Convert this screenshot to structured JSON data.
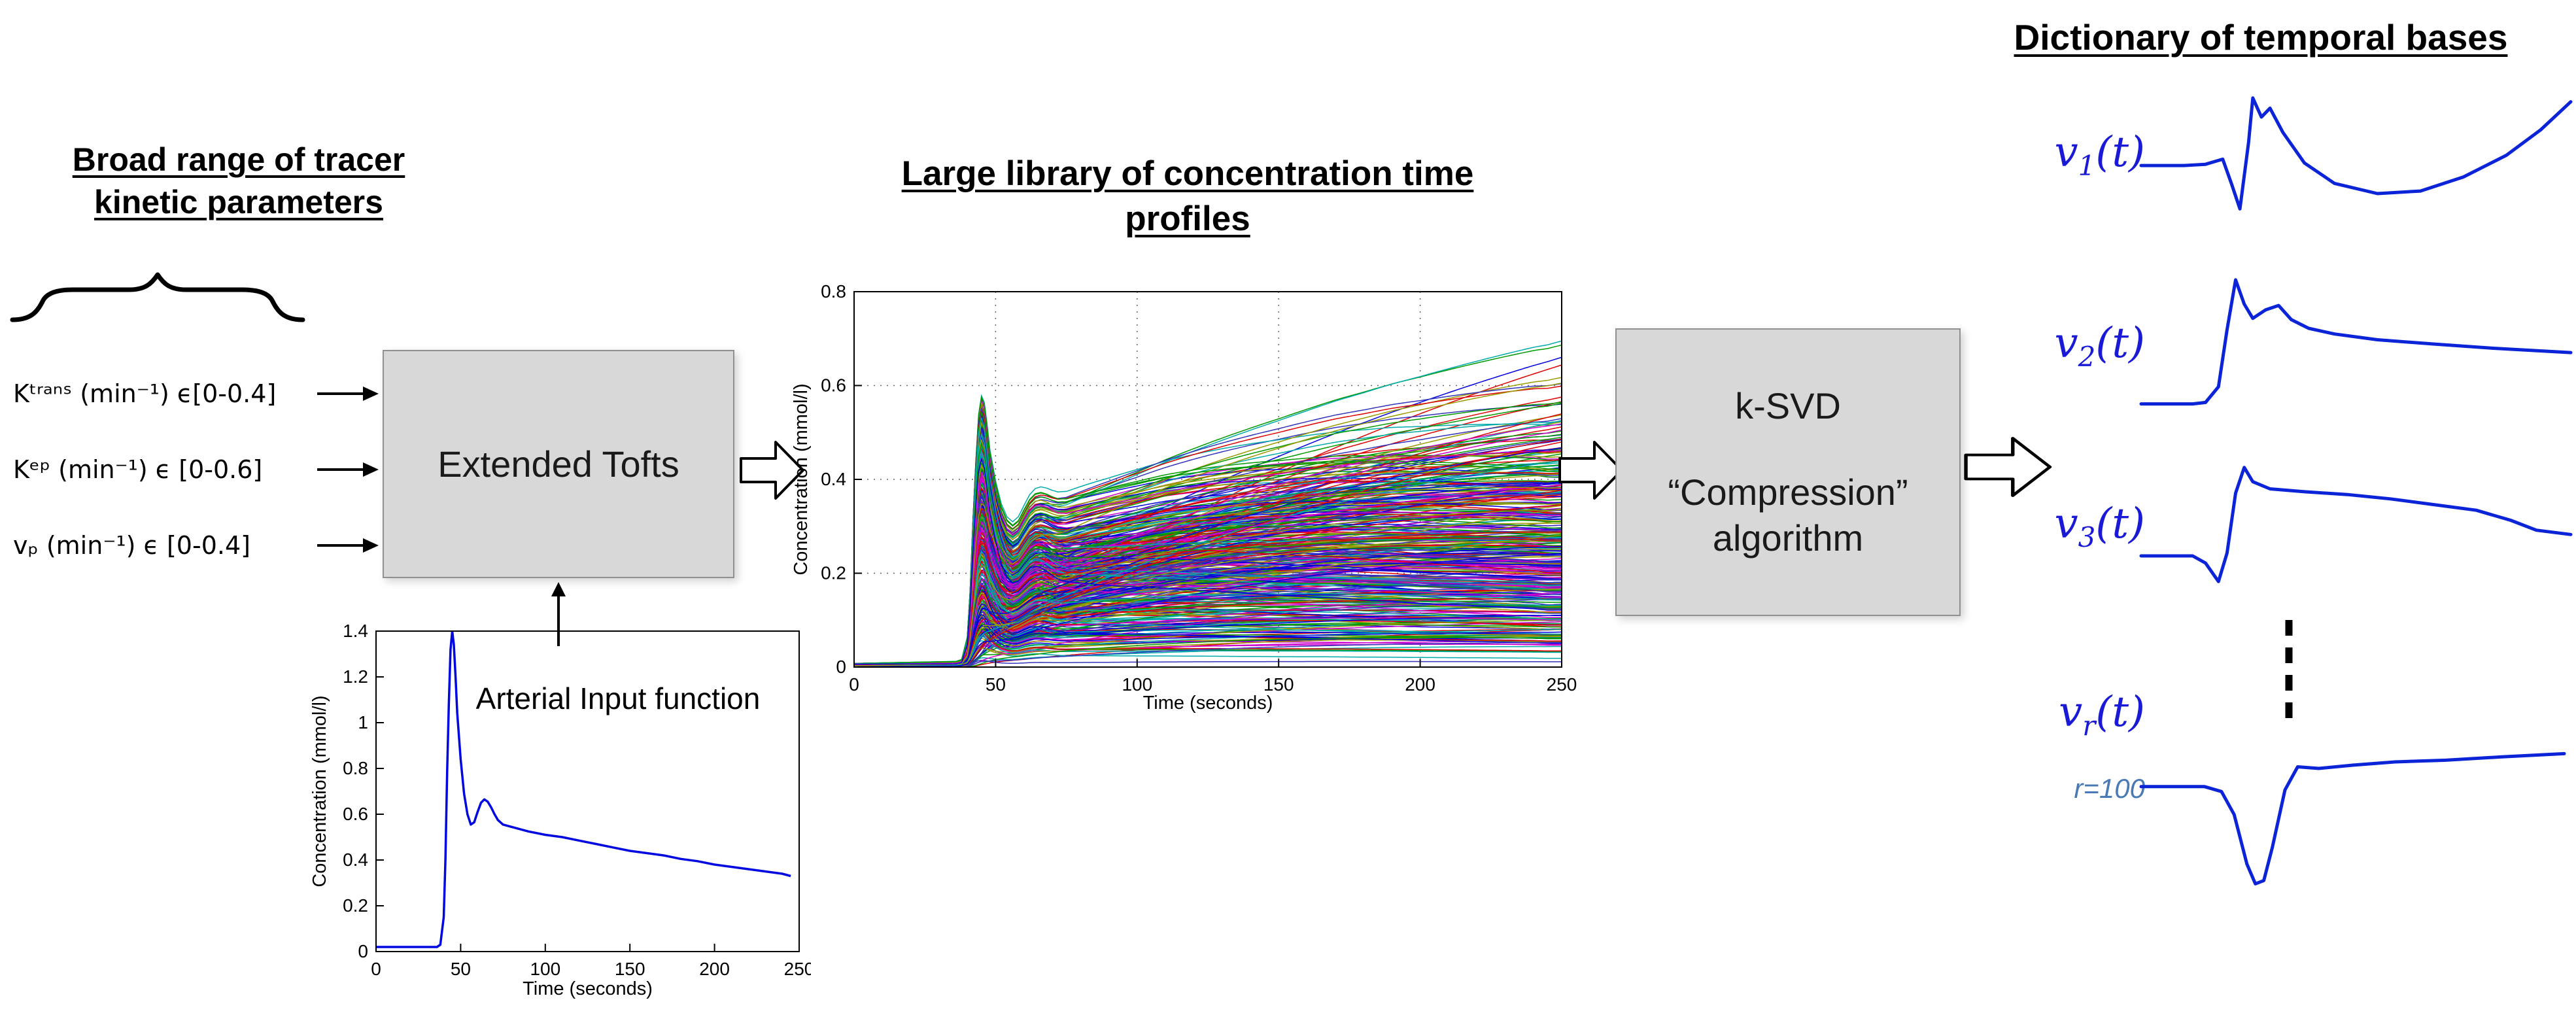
{
  "colors": {
    "math_blue": "#1a1ad6",
    "basis_curve": "#0b24d8",
    "aif_curve": "#0008e0",
    "r_label_blue": "#4a7ab5",
    "box_fill": "#d8d8d8",
    "box_border": "#909090"
  },
  "headings": {
    "left": [
      "Broad range of tracer",
      "kinetic parameters"
    ],
    "library": [
      "Large library of concentration time",
      "profiles"
    ],
    "dictionary": "Dictionary of temporal bases"
  },
  "parameters": [
    "Kᵗʳᵃⁿˢ (min⁻¹) ϵ[0-0.4]",
    "Kᵉᵖ (min⁻¹) ϵ [0-0.6]",
    "vₚ (min⁻¹) ϵ [0-0.4]"
  ],
  "boxes": {
    "tofts": "Extended Tofts",
    "ksvd": [
      "k-SVD",
      "“Compression”",
      "algorithm"
    ]
  },
  "dictionary": {
    "var_name": "v",
    "arg": "(t)",
    "r_label": "r=100",
    "bases": [
      {
        "sub": "1",
        "points": [
          [
            0,
            0.42
          ],
          [
            0.1,
            0.42
          ],
          [
            0.15,
            0.43
          ],
          [
            0.19,
            0.47
          ],
          [
            0.21,
            0.28
          ],
          [
            0.23,
            0.08
          ],
          [
            0.25,
            0.6
          ],
          [
            0.26,
            0.95
          ],
          [
            0.28,
            0.8
          ],
          [
            0.3,
            0.87
          ],
          [
            0.33,
            0.68
          ],
          [
            0.38,
            0.44
          ],
          [
            0.45,
            0.28
          ],
          [
            0.55,
            0.2
          ],
          [
            0.65,
            0.22
          ],
          [
            0.75,
            0.33
          ],
          [
            0.85,
            0.5
          ],
          [
            0.93,
            0.7
          ],
          [
            1,
            0.92
          ]
        ]
      },
      {
        "sub": "2",
        "points": [
          [
            0,
            0.08
          ],
          [
            0.12,
            0.08
          ],
          [
            0.15,
            0.09
          ],
          [
            0.18,
            0.2
          ],
          [
            0.2,
            0.6
          ],
          [
            0.22,
            0.95
          ],
          [
            0.24,
            0.78
          ],
          [
            0.26,
            0.68
          ],
          [
            0.29,
            0.74
          ],
          [
            0.32,
            0.77
          ],
          [
            0.35,
            0.67
          ],
          [
            0.39,
            0.61
          ],
          [
            0.45,
            0.57
          ],
          [
            0.55,
            0.53
          ],
          [
            0.68,
            0.5
          ],
          [
            0.82,
            0.47
          ],
          [
            1,
            0.44
          ]
        ]
      },
      {
        "sub": "3",
        "points": [
          [
            0,
            0.28
          ],
          [
            0.12,
            0.28
          ],
          [
            0.15,
            0.23
          ],
          [
            0.18,
            0.1
          ],
          [
            0.2,
            0.3
          ],
          [
            0.22,
            0.72
          ],
          [
            0.24,
            0.9
          ],
          [
            0.26,
            0.8
          ],
          [
            0.3,
            0.75
          ],
          [
            0.38,
            0.73
          ],
          [
            0.48,
            0.71
          ],
          [
            0.58,
            0.68
          ],
          [
            0.68,
            0.64
          ],
          [
            0.78,
            0.6
          ],
          [
            0.86,
            0.53
          ],
          [
            0.92,
            0.46
          ],
          [
            1,
            0.43
          ]
        ]
      },
      {
        "sub": "r",
        "points": [
          [
            0,
            0.62
          ],
          [
            0.15,
            0.62
          ],
          [
            0.19,
            0.59
          ],
          [
            0.22,
            0.45
          ],
          [
            0.25,
            0.15
          ],
          [
            0.27,
            0.03
          ],
          [
            0.29,
            0.05
          ],
          [
            0.31,
            0.25
          ],
          [
            0.34,
            0.6
          ],
          [
            0.37,
            0.74
          ],
          [
            0.42,
            0.73
          ],
          [
            0.5,
            0.75
          ],
          [
            0.6,
            0.77
          ],
          [
            0.72,
            0.78
          ],
          [
            0.85,
            0.8
          ],
          [
            1,
            0.82
          ]
        ]
      }
    ]
  },
  "chart_data": [
    {
      "id": "aif",
      "type": "line",
      "title": "Arterial Input function",
      "xlabel": "Time (seconds)",
      "ylabel": "Concentration (mmol/l)",
      "xlim": [
        0,
        250
      ],
      "ylim": [
        0,
        1.4
      ],
      "x_ticks": [
        0,
        50,
        100,
        150,
        200,
        250
      ],
      "y_ticks": [
        0,
        0.2,
        0.4,
        0.6,
        0.8,
        1,
        1.2,
        1.4
      ],
      "grid": false,
      "legend": null,
      "points": [
        [
          0,
          0.02
        ],
        [
          30,
          0.02
        ],
        [
          36,
          0.02
        ],
        [
          38,
          0.03
        ],
        [
          40,
          0.15
        ],
        [
          41,
          0.4
        ],
        [
          42,
          0.78
        ],
        [
          43,
          1.08
        ],
        [
          44,
          1.32
        ],
        [
          45,
          1.4
        ],
        [
          46,
          1.34
        ],
        [
          47,
          1.2
        ],
        [
          48,
          1.04
        ],
        [
          50,
          0.84
        ],
        [
          52,
          0.69
        ],
        [
          54,
          0.6
        ],
        [
          56,
          0.555
        ],
        [
          58,
          0.565
        ],
        [
          60,
          0.61
        ],
        [
          62,
          0.65
        ],
        [
          64,
          0.665
        ],
        [
          66,
          0.655
        ],
        [
          68,
          0.63
        ],
        [
          70,
          0.6
        ],
        [
          72,
          0.575
        ],
        [
          75,
          0.555
        ],
        [
          80,
          0.545
        ],
        [
          90,
          0.525
        ],
        [
          100,
          0.51
        ],
        [
          110,
          0.5
        ],
        [
          120,
          0.485
        ],
        [
          130,
          0.47
        ],
        [
          140,
          0.455
        ],
        [
          150,
          0.44
        ],
        [
          160,
          0.43
        ],
        [
          170,
          0.42
        ],
        [
          180,
          0.405
        ],
        [
          190,
          0.395
        ],
        [
          200,
          0.38
        ],
        [
          210,
          0.37
        ],
        [
          220,
          0.36
        ],
        [
          230,
          0.35
        ],
        [
          240,
          0.34
        ],
        [
          245,
          0.33
        ]
      ]
    },
    {
      "id": "library",
      "type": "line",
      "title": "",
      "xlabel": "Time (seconds)",
      "ylabel": "Concentration (mmol/l)",
      "xlim": [
        0,
        250
      ],
      "ylim": [
        0,
        0.8
      ],
      "x_ticks": [
        0,
        50,
        100,
        150,
        200,
        250
      ],
      "y_ticks": [
        0,
        0.2,
        0.4,
        0.6,
        0.8
      ],
      "grid": true,
      "model": "extended-tofts",
      "n_curves": 400,
      "ktrans_range": [
        0.005,
        0.4
      ],
      "kep_range": [
        0.02,
        0.6
      ],
      "vp_range": [
        0,
        0.4
      ],
      "palette": [
        "#0000dd",
        "#dd0000",
        "#009900",
        "#cc00cc",
        "#00aaaa",
        "#999900",
        "#3333bb"
      ]
    }
  ]
}
